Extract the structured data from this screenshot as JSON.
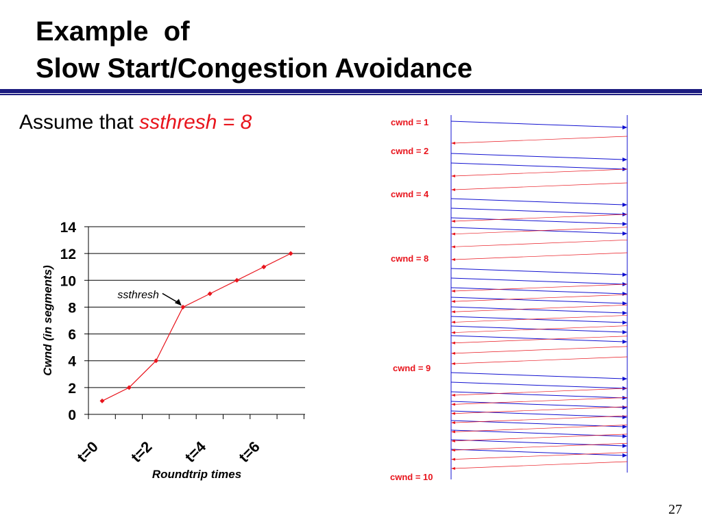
{
  "slide": {
    "title_line1": "Example  of",
    "title_line2": "Slow Start/Congestion Avoidance",
    "assume_prefix": "Assume that ",
    "assume_highlight": "ssthresh = 8",
    "page_number": "27",
    "accent_color": "#1c1c80",
    "highlight_color": "#e8141c"
  },
  "chart_data": {
    "type": "line",
    "title": "",
    "xlabel": "Roundtrip times",
    "ylabel": "Cwnd (in segments)",
    "x": [
      0,
      1,
      2,
      3,
      4,
      5,
      6,
      7
    ],
    "series": [
      {
        "values": [
          1,
          2,
          4,
          8,
          9,
          10,
          11,
          12
        ],
        "color": "#e8141c"
      }
    ],
    "ylim": [
      0,
      14
    ],
    "yticks": [
      0,
      2,
      4,
      6,
      8,
      10,
      12,
      14
    ],
    "xtick_labels": [
      {
        "x": 0,
        "label": "t=0"
      },
      {
        "x": 2,
        "label": "t=2"
      },
      {
        "x": 4,
        "label": "t=4"
      },
      {
        "x": 6,
        "label": "t=6"
      }
    ],
    "grid": true,
    "annotation": {
      "text": "ssthresh",
      "x": 3,
      "y": 8
    }
  },
  "timing_diagram": {
    "labels": [
      {
        "text": "cwnd = 1"
      },
      {
        "text": "cwnd = 2"
      },
      {
        "text": "cwnd = 4"
      },
      {
        "text": "cwnd = 8"
      },
      {
        "text": "cwnd = 9"
      },
      {
        "text": "cwnd = 10"
      }
    ],
    "rounds": [
      1,
      2,
      4,
      8,
      9
    ],
    "segment_color": "#1010d0",
    "ack_color": "#e8141c"
  }
}
